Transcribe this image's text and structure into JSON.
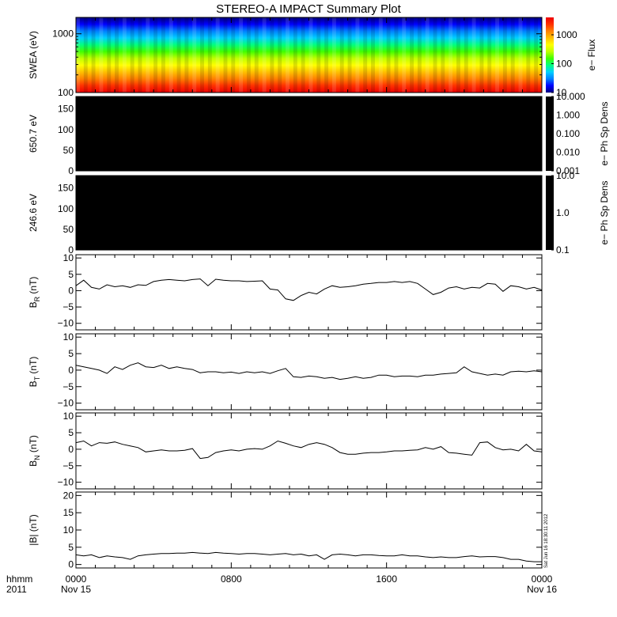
{
  "chart_data": [
    {
      "type": "heatmap",
      "id": "swea",
      "title": "STEREO-A IMPACT Summary Plot",
      "ylabel": "SWEA (eV)",
      "y_scale": "log",
      "ylim": [
        100,
        1900
      ],
      "yticks": [
        {
          "v": 100,
          "label": "100"
        },
        {
          "v": 1000,
          "label": "1000"
        }
      ],
      "colorbar": {
        "label": "e− Flux",
        "scale": "log",
        "range": [
          10,
          4000
        ],
        "ticks": [
          {
            "v": 10,
            "label": "10"
          },
          {
            "v": 100,
            "label": "100"
          },
          {
            "v": 1000,
            "label": "1000"
          }
        ],
        "colors": [
          "#000080",
          "#0000ff",
          "#0080ff",
          "#00d0ff",
          "#00ff80",
          "#40ff00",
          "#c0ff00",
          "#ffff00",
          "#ffc000",
          "#ff8000",
          "#ff3000",
          "#ee0000"
        ]
      }
    },
    {
      "type": "heatmap",
      "id": "pad650",
      "ylabel": "650.7 eV",
      "ylim": [
        0,
        180
      ],
      "yticks": [
        {
          "v": 0,
          "label": "0"
        },
        {
          "v": 50,
          "label": "50"
        },
        {
          "v": 100,
          "label": "100"
        },
        {
          "v": 150,
          "label": "150"
        }
      ],
      "fill": "#000000",
      "colorbar": {
        "label": "e− Ph Sp Dens",
        "scale": "log",
        "range": [
          0.001,
          10
        ],
        "ticks": [
          {
            "v": 0.001,
            "label": "0.001"
          },
          {
            "v": 0.01,
            "label": "0.010"
          },
          {
            "v": 0.1,
            "label": "0.100"
          },
          {
            "v": 1,
            "label": "1.000"
          },
          {
            "v": 10,
            "label": "10.000"
          }
        ]
      }
    },
    {
      "type": "heatmap",
      "id": "pad246",
      "ylabel": "246.6 eV",
      "ylim": [
        0,
        180
      ],
      "yticks": [
        {
          "v": 0,
          "label": "0"
        },
        {
          "v": 50,
          "label": "50"
        },
        {
          "v": 100,
          "label": "100"
        },
        {
          "v": 150,
          "label": "150"
        }
      ],
      "fill": "#000000",
      "colorbar": {
        "label": "e− Ph Sp Dens",
        "scale": "log",
        "range": [
          0.1,
          10
        ],
        "ticks": [
          {
            "v": 0.1,
            "label": "0.1"
          },
          {
            "v": 1,
            "label": "1.0"
          },
          {
            "v": 10,
            "label": "10.0"
          }
        ]
      }
    },
    {
      "type": "line",
      "id": "br",
      "ylabel": "B",
      "ylabel_sub": "R",
      "ylabel_unit": "(nT)",
      "ylim": [
        -12,
        11
      ],
      "yticks": [
        {
          "v": -10,
          "label": "−10"
        },
        {
          "v": -5,
          "label": "−5"
        },
        {
          "v": 0,
          "label": "0"
        },
        {
          "v": 5,
          "label": "5"
        },
        {
          "v": 10,
          "label": "10"
        }
      ],
      "x": [
        0.0,
        0.4,
        0.8,
        1.2,
        1.6,
        2.0,
        2.4,
        2.8,
        3.2,
        3.6,
        4.0,
        4.4,
        4.8,
        5.2,
        5.6,
        6.0,
        6.4,
        6.8,
        7.2,
        7.6,
        8.0,
        8.4,
        8.8,
        9.2,
        9.6,
        10.0,
        10.4,
        10.8,
        11.2,
        11.6,
        12.0,
        12.4,
        12.8,
        13.2,
        13.6,
        14.0,
        14.4,
        14.8,
        15.2,
        15.6,
        16.0,
        16.4,
        16.8,
        17.2,
        17.6,
        18.0,
        18.4,
        18.8,
        19.2,
        19.6,
        20.0,
        20.4,
        20.8,
        21.2,
        21.6,
        22.0,
        22.4,
        22.8,
        23.2,
        23.6,
        24.0
      ],
      "y": [
        1.5,
        3.2,
        1.0,
        0.5,
        1.8,
        1.2,
        1.5,
        1.0,
        1.8,
        1.6,
        2.8,
        3.2,
        3.4,
        3.2,
        3.0,
        3.4,
        3.6,
        1.5,
        3.5,
        3.2,
        3.0,
        3.0,
        2.8,
        2.9,
        3.0,
        0.5,
        0.2,
        -2.5,
        -3.0,
        -1.5,
        -0.5,
        -1.0,
        0.5,
        1.5,
        1.0,
        1.2,
        1.5,
        2.0,
        2.2,
        2.5,
        2.5,
        2.8,
        2.5,
        2.8,
        2.2,
        0.5,
        -1.2,
        -0.5,
        0.8,
        1.2,
        0.5,
        1.0,
        0.8,
        2.2,
        2.0,
        -0.2,
        1.5,
        1.2,
        0.5,
        1.0,
        0.2
      ]
    },
    {
      "type": "line",
      "id": "bt",
      "ylabel": "B",
      "ylabel_sub": "T",
      "ylabel_unit": "(nT)",
      "ylim": [
        -12,
        11
      ],
      "yticks": [
        {
          "v": -10,
          "label": "−10"
        },
        {
          "v": -5,
          "label": "−5"
        },
        {
          "v": 0,
          "label": "0"
        },
        {
          "v": 5,
          "label": "5"
        },
        {
          "v": 10,
          "label": "10"
        }
      ],
      "x": [
        0.0,
        0.4,
        0.8,
        1.2,
        1.6,
        2.0,
        2.4,
        2.8,
        3.2,
        3.6,
        4.0,
        4.4,
        4.8,
        5.2,
        5.6,
        6.0,
        6.4,
        6.8,
        7.2,
        7.6,
        8.0,
        8.4,
        8.8,
        9.2,
        9.6,
        10.0,
        10.4,
        10.8,
        11.2,
        11.6,
        12.0,
        12.4,
        12.8,
        13.2,
        13.6,
        14.0,
        14.4,
        14.8,
        15.2,
        15.6,
        16.0,
        16.4,
        16.8,
        17.2,
        17.6,
        18.0,
        18.4,
        18.8,
        19.2,
        19.6,
        20.0,
        20.4,
        20.8,
        21.2,
        21.6,
        22.0,
        22.4,
        22.8,
        23.2,
        23.6,
        24.0
      ],
      "y": [
        1.5,
        1.0,
        0.5,
        0.0,
        -1.0,
        1.0,
        0.2,
        1.5,
        2.2,
        1.0,
        0.8,
        1.5,
        0.5,
        1.0,
        0.5,
        0.2,
        -0.8,
        -0.5,
        -0.5,
        -0.8,
        -0.6,
        -1.0,
        -0.5,
        -0.8,
        -0.5,
        -1.0,
        -0.2,
        0.5,
        -2.0,
        -2.2,
        -1.8,
        -2.0,
        -2.5,
        -2.2,
        -2.8,
        -2.5,
        -2.0,
        -2.5,
        -2.2,
        -1.5,
        -1.5,
        -2.0,
        -1.8,
        -1.8,
        -2.0,
        -1.5,
        -1.5,
        -1.2,
        -1.0,
        -0.8,
        1.0,
        -0.5,
        -1.0,
        -1.5,
        -1.2,
        -1.5,
        -0.5,
        -0.3,
        -0.5,
        -0.2,
        -0.5
      ]
    },
    {
      "type": "line",
      "id": "bn",
      "ylabel": "B",
      "ylabel_sub": "N",
      "ylabel_unit": "(nT)",
      "ylim": [
        -12,
        11
      ],
      "yticks": [
        {
          "v": -10,
          "label": "−10"
        },
        {
          "v": -5,
          "label": "−5"
        },
        {
          "v": 0,
          "label": "0"
        },
        {
          "v": 5,
          "label": "5"
        },
        {
          "v": 10,
          "label": "10"
        }
      ],
      "x": [
        0.0,
        0.4,
        0.8,
        1.2,
        1.6,
        2.0,
        2.4,
        2.8,
        3.2,
        3.6,
        4.0,
        4.4,
        4.8,
        5.2,
        5.6,
        6.0,
        6.4,
        6.8,
        7.2,
        7.6,
        8.0,
        8.4,
        8.8,
        9.2,
        9.6,
        10.0,
        10.4,
        10.8,
        11.2,
        11.6,
        12.0,
        12.4,
        12.8,
        13.2,
        13.6,
        14.0,
        14.4,
        14.8,
        15.2,
        15.6,
        16.0,
        16.4,
        16.8,
        17.2,
        17.6,
        18.0,
        18.4,
        18.8,
        19.2,
        19.6,
        20.0,
        20.4,
        20.8,
        21.2,
        21.6,
        22.0,
        22.4,
        22.8,
        23.2,
        23.6,
        24.0
      ],
      "y": [
        2.0,
        2.5,
        1.0,
        2.0,
        1.8,
        2.2,
        1.5,
        1.0,
        0.5,
        -0.8,
        -0.5,
        -0.2,
        -0.5,
        -0.5,
        -0.3,
        0.2,
        -2.8,
        -2.5,
        -1.0,
        -0.5,
        -0.2,
        -0.5,
        0.0,
        0.2,
        0.0,
        1.0,
        2.5,
        1.8,
        1.0,
        0.5,
        1.5,
        2.0,
        1.5,
        0.5,
        -1.0,
        -1.5,
        -1.5,
        -1.2,
        -1.0,
        -1.0,
        -0.8,
        -0.5,
        -0.5,
        -0.3,
        -0.2,
        0.5,
        0.0,
        0.8,
        -1.0,
        -1.2,
        -1.5,
        -1.8,
        2.0,
        2.2,
        0.5,
        -0.2,
        0.0,
        -0.5,
        1.5,
        -0.5,
        -0.8
      ]
    },
    {
      "type": "line",
      "id": "bmag",
      "ylabel": "|B| (nT)",
      "ylim": [
        -1,
        21
      ],
      "yticks": [
        {
          "v": 0,
          "label": "0"
        },
        {
          "v": 5,
          "label": "5"
        },
        {
          "v": 10,
          "label": "10"
        },
        {
          "v": 15,
          "label": "15"
        },
        {
          "v": 20,
          "label": "20"
        }
      ],
      "x": [
        0.0,
        0.4,
        0.8,
        1.2,
        1.6,
        2.0,
        2.4,
        2.8,
        3.2,
        3.6,
        4.0,
        4.4,
        4.8,
        5.2,
        5.6,
        6.0,
        6.4,
        6.8,
        7.2,
        7.6,
        8.0,
        8.4,
        8.8,
        9.2,
        9.6,
        10.0,
        10.4,
        10.8,
        11.2,
        11.6,
        12.0,
        12.4,
        12.8,
        13.2,
        13.6,
        14.0,
        14.4,
        14.8,
        15.2,
        15.6,
        16.0,
        16.4,
        16.8,
        17.2,
        17.6,
        18.0,
        18.4,
        18.8,
        19.2,
        19.6,
        20.0,
        20.4,
        20.8,
        21.2,
        21.6,
        22.0,
        22.4,
        22.8,
        23.2,
        23.6,
        24.0
      ],
      "y": [
        2.8,
        2.5,
        2.8,
        2.0,
        2.5,
        2.2,
        2.0,
        1.5,
        2.5,
        2.8,
        3.0,
        3.2,
        3.2,
        3.3,
        3.3,
        3.5,
        3.3,
        3.2,
        3.5,
        3.3,
        3.2,
        3.0,
        3.2,
        3.2,
        3.0,
        2.8,
        3.0,
        3.2,
        2.8,
        3.0,
        2.5,
        2.8,
        1.5,
        2.8,
        3.0,
        2.8,
        2.5,
        2.8,
        2.8,
        2.6,
        2.5,
        2.5,
        2.8,
        2.5,
        2.5,
        2.2,
        2.0,
        2.2,
        2.0,
        2.0,
        2.3,
        2.5,
        2.2,
        2.3,
        2.3,
        2.0,
        1.5,
        1.5,
        1.0,
        0.8,
        0.8
      ]
    }
  ],
  "x_axis": {
    "range": [
      0,
      24
    ],
    "ticks": [
      {
        "v": 0,
        "label": "0000"
      },
      {
        "v": 8,
        "label": "0800"
      },
      {
        "v": 16,
        "label": "1600"
      },
      {
        "v": 24,
        "label": "0000"
      }
    ],
    "date_labels": [
      {
        "v": 0,
        "label": "Nov 15"
      },
      {
        "v": 24,
        "label": "Nov 16"
      }
    ],
    "row_labels": [
      "hhmm",
      "2011"
    ]
  },
  "timestamp": "Sat Jun 16 18:30:11 2012"
}
